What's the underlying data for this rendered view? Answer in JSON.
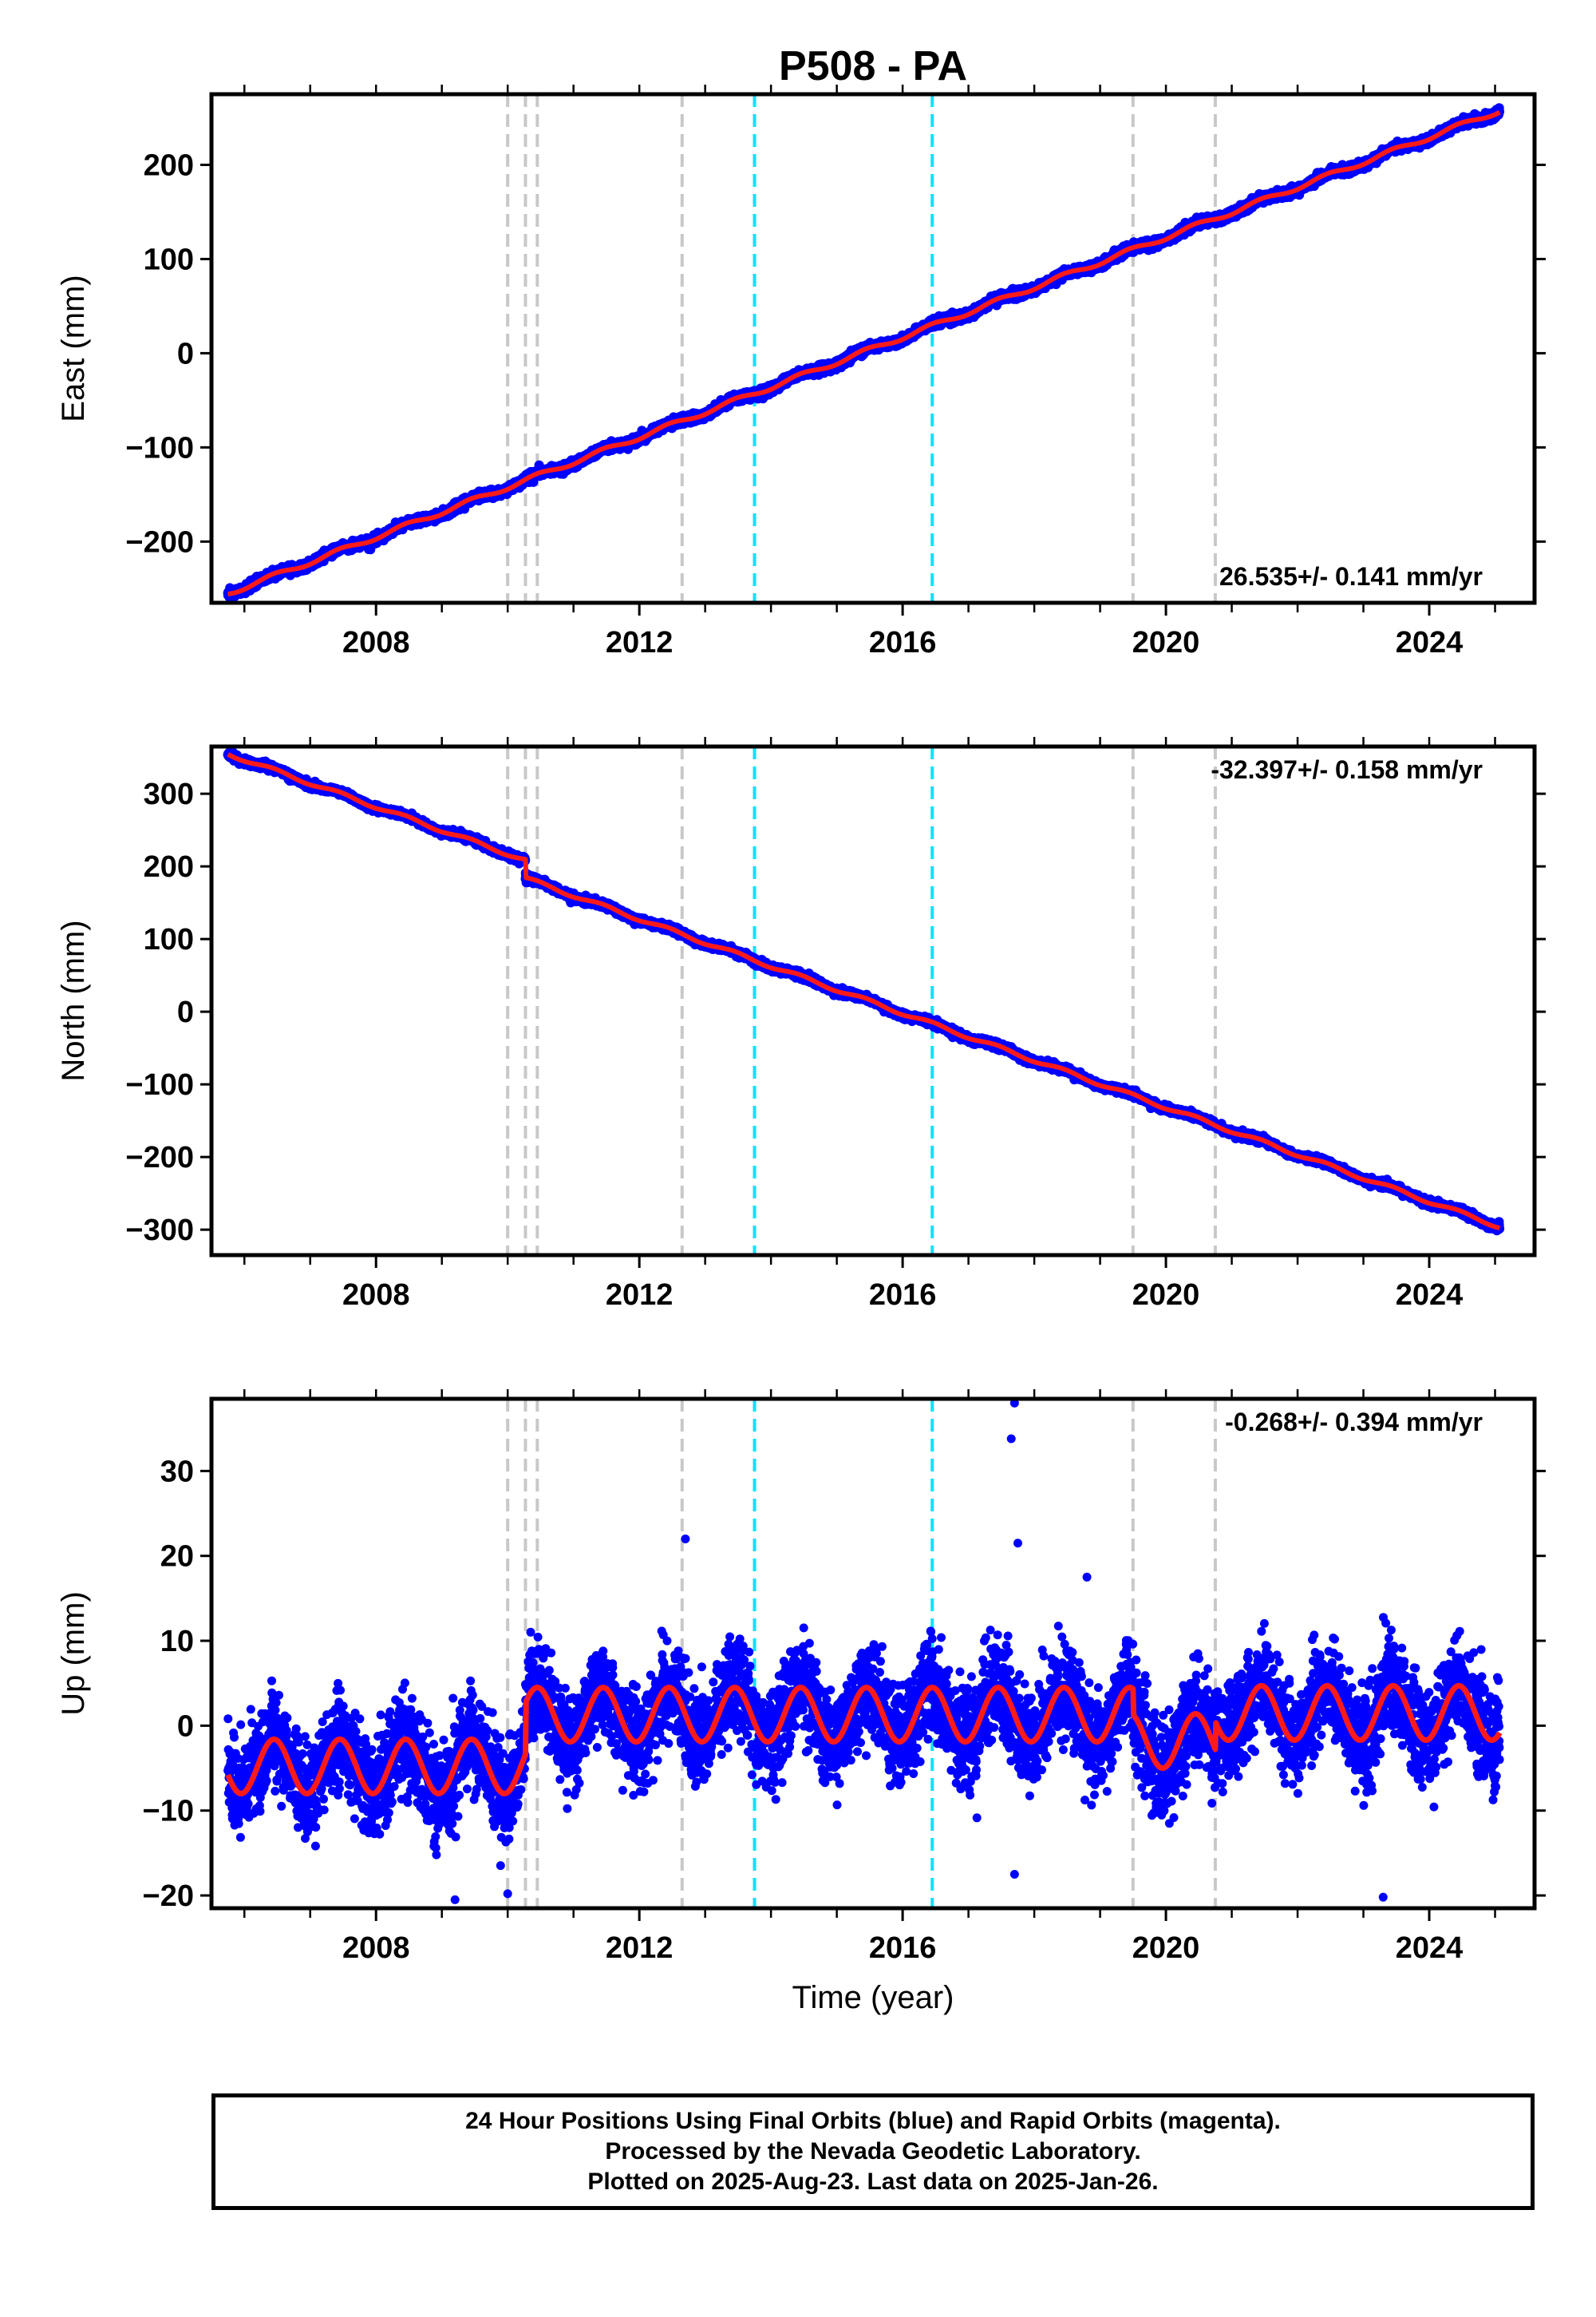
{
  "chart_data": {
    "type": "scatter",
    "title": "P508 - PA",
    "xlabel": "Time (year)",
    "xlim": [
      2005.5,
      2025.6
    ],
    "xticks": [
      2008,
      2012,
      2016,
      2020,
      2024
    ],
    "x_start": 2005.75,
    "x_end": 2025.07,
    "reference_lines": {
      "gray": [
        2010.0,
        2010.27,
        2010.45,
        2012.65,
        2019.5,
        2020.75
      ],
      "cyan": [
        2013.75,
        2016.45
      ]
    },
    "panels": [
      {
        "name": "east",
        "ylabel": "East (mm)",
        "ylim": [
          -265,
          275
        ],
        "yticks": [
          -200,
          -100,
          0,
          100,
          200
        ],
        "rate_label": "26.535+/- 0.141 mm/yr",
        "rate_mm_per_yr": 26.535,
        "rate_uncertainty": 0.141,
        "start_value": -255,
        "end_value": 262,
        "seasonal_amplitude_mm": 2.5,
        "noise_mm": 2.2,
        "offsets": []
      },
      {
        "name": "north",
        "ylabel": "North (mm)",
        "ylim": [
          -335,
          365
        ],
        "yticks": [
          -300,
          -200,
          -100,
          0,
          100,
          200,
          300
        ],
        "rate_label": "-32.397+/- 0.158 mm/yr",
        "rate_mm_per_yr": -32.397,
        "rate_uncertainty": 0.158,
        "start_value": 355,
        "end_value": -320,
        "seasonal_amplitude_mm": 2.5,
        "noise_mm": 2.2,
        "offsets": [
          {
            "x": 2010.27,
            "value": -25
          }
        ]
      },
      {
        "name": "up",
        "ylabel": "Up (mm)",
        "ylim": [
          -21.5,
          38.5
        ],
        "yticks": [
          -20,
          -10,
          0,
          10,
          20,
          30
        ],
        "rate_label": "-0.268+/- 0.394 mm/yr",
        "rate_mm_per_yr": -0.268,
        "rate_uncertainty": 0.394,
        "seasonal_amplitude_mm": 3.2,
        "noise_mm": 2.8,
        "model_segments": [
          {
            "from": 2005.75,
            "to": 2010.27,
            "mean": -4.8
          },
          {
            "from": 2010.27,
            "to": 2019.5,
            "mean": 1.3
          },
          {
            "from": 2019.5,
            "to": 2020.75,
            "mean": -1.8
          },
          {
            "from": 2020.75,
            "to": 2025.07,
            "mean": 1.5
          }
        ],
        "outliers": [
          {
            "x": 2017.7,
            "y": 38
          },
          {
            "x": 2017.65,
            "y": 33.8
          },
          {
            "x": 2017.75,
            "y": 21.5
          },
          {
            "x": 2012.7,
            "y": 22
          },
          {
            "x": 2017.7,
            "y": -17.5
          },
          {
            "x": 2023.3,
            "y": -20.2
          },
          {
            "x": 2009.2,
            "y": -20.5
          },
          {
            "x": 2018.8,
            "y": 17.5
          },
          {
            "x": 2010.0,
            "y": -19.8
          }
        ]
      }
    ],
    "series": [
      {
        "name": "Final Orbits",
        "color": "#0000ff"
      },
      {
        "name": "Rapid Orbits",
        "color": "#ff00ff"
      }
    ],
    "model_color": "#ff1a1a",
    "gray_line_color": "#c8c8c8",
    "cyan_line_color": "#00e5ff"
  },
  "footer": {
    "line1": "24 Hour Positions Using Final Orbits (blue) and Rapid Orbits (magenta).",
    "line2": "Processed by the Nevada Geodetic Laboratory.",
    "line3": "Plotted on 2025-Aug-23. Last data on 2025-Jan-26."
  }
}
